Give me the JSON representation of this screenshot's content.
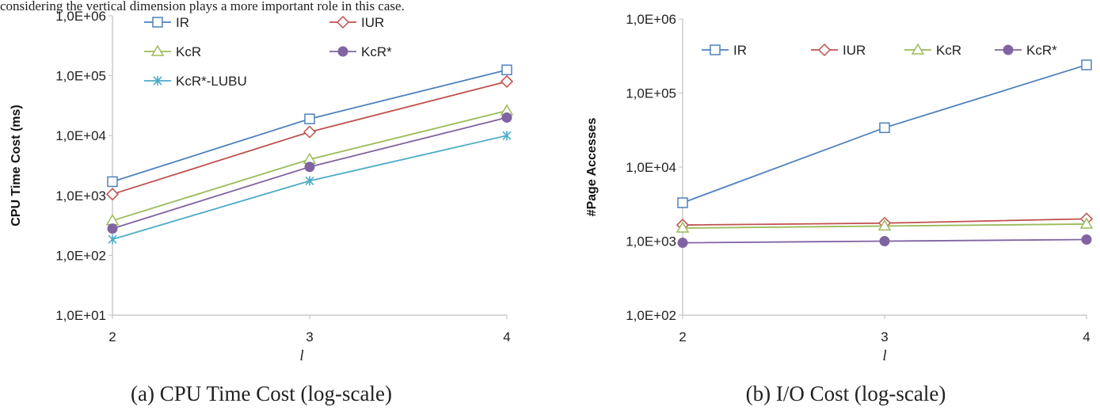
{
  "top_text": "considering the vertical dimension plays a more important role in this case.",
  "colors": {
    "IR": "#4f81bd",
    "IUR": "#c0504d",
    "KcR": "#9bbb59",
    "KcR*": "#8064a2",
    "KcR*-LUBU": "#4bacc6"
  },
  "chart_data": [
    {
      "type": "line",
      "caption": "(a) CPU Time Cost (log-scale)",
      "xlabel": "l",
      "ylabel": "CPU Time Cost (ms)",
      "y_scale": "log",
      "x": [
        2,
        3,
        4
      ],
      "x_tick_labels": [
        "2",
        "3",
        "4"
      ],
      "ylim": [
        10,
        1000000
      ],
      "y_tick_values": [
        10,
        100,
        1000,
        10000,
        100000,
        1000000
      ],
      "y_tick_labels": [
        "1,0E+01",
        "1,0E+02",
        "1,0E+03",
        "1,0E+04",
        "1,0E+05",
        "1,0E+06"
      ],
      "grid": false,
      "legend": {
        "placement": "top",
        "columns": 2
      },
      "series": [
        {
          "name": "IR",
          "marker": "square",
          "values": [
            1700,
            19000,
            125000
          ]
        },
        {
          "name": "IUR",
          "marker": "diamond",
          "values": [
            1050,
            11500,
            80000
          ]
        },
        {
          "name": "KcR",
          "marker": "triangle",
          "values": [
            380,
            4000,
            26000
          ]
        },
        {
          "name": "KcR*",
          "marker": "circle",
          "values": [
            280,
            3000,
            20000
          ]
        },
        {
          "name": "KcR*-LUBU",
          "marker": "star",
          "values": [
            185,
            1750,
            10000
          ]
        }
      ]
    },
    {
      "type": "line",
      "caption": "(b) I/O Cost (log-scale)",
      "xlabel": "l",
      "ylabel": "#Page Accesses",
      "y_scale": "log",
      "x": [
        2,
        3,
        4
      ],
      "x_tick_labels": [
        "2",
        "3",
        "4"
      ],
      "ylim": [
        100,
        1000000
      ],
      "y_tick_values": [
        100,
        1000,
        10000,
        100000,
        1000000
      ],
      "y_tick_labels": [
        "1,0E+02",
        "1,0E+03",
        "1,0E+04",
        "1,0E+05",
        "1,0E+06"
      ],
      "grid": false,
      "legend": {
        "placement": "top",
        "columns": 4
      },
      "series": [
        {
          "name": "IR",
          "marker": "square",
          "values": [
            3300,
            34000,
            240000
          ]
        },
        {
          "name": "IUR",
          "marker": "diamond",
          "values": [
            1650,
            1750,
            2000
          ]
        },
        {
          "name": "KcR",
          "marker": "triangle",
          "values": [
            1500,
            1600,
            1700
          ]
        },
        {
          "name": "KcR*",
          "marker": "circle",
          "values": [
            950,
            1000,
            1050
          ]
        }
      ]
    }
  ]
}
